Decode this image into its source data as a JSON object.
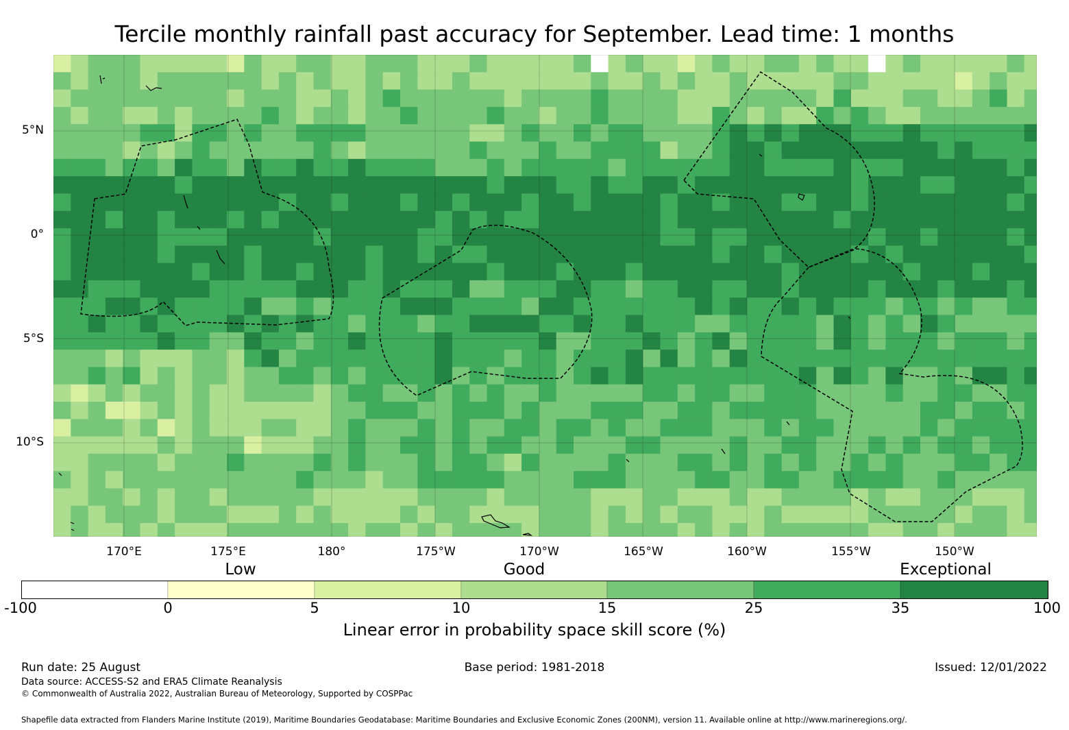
{
  "title": "Tercile monthly rainfall past accuracy for September. Lead time: 1 months",
  "axes": {
    "lat_labels": [
      "5°N",
      "0°",
      "5°S",
      "10°S"
    ],
    "lon_labels": [
      "170°E",
      "175°E",
      "180°",
      "175°W",
      "170°W",
      "165°W",
      "160°W",
      "155°W",
      "150°W"
    ]
  },
  "colorbar": {
    "categories": [
      "Low",
      "Good",
      "Exceptional"
    ],
    "ticks": [
      "-100",
      "0",
      "5",
      "10",
      "15",
      "25",
      "35",
      "100"
    ],
    "colors": [
      "#ffffff",
      "#ffffcc",
      "#d9f0a3",
      "#addd8e",
      "#78c679",
      "#41ab5d",
      "#238443"
    ],
    "label": "Linear error in probability space skill score (%)"
  },
  "footer": {
    "run_date": "Run date: 25 August",
    "base_period": "Base period: 1981-2018",
    "issued": "Issued: 12/01/2022",
    "data_source": "Data source: ACCESS-S2 and ERA5 Climate Reanalysis",
    "copyright": "© Commonwealth of Australia 2022, Australian Bureau of Meteorology, Supported by COSPPac",
    "shapefile": "Shapefile data extracted from Flanders Marine Institute (2019), Maritime Boundaries Geodatabase: Maritime Boundaries and Exclusive Economic Zones (200NM), version 11. Available online at http://www.marineregions.org/."
  }
}
